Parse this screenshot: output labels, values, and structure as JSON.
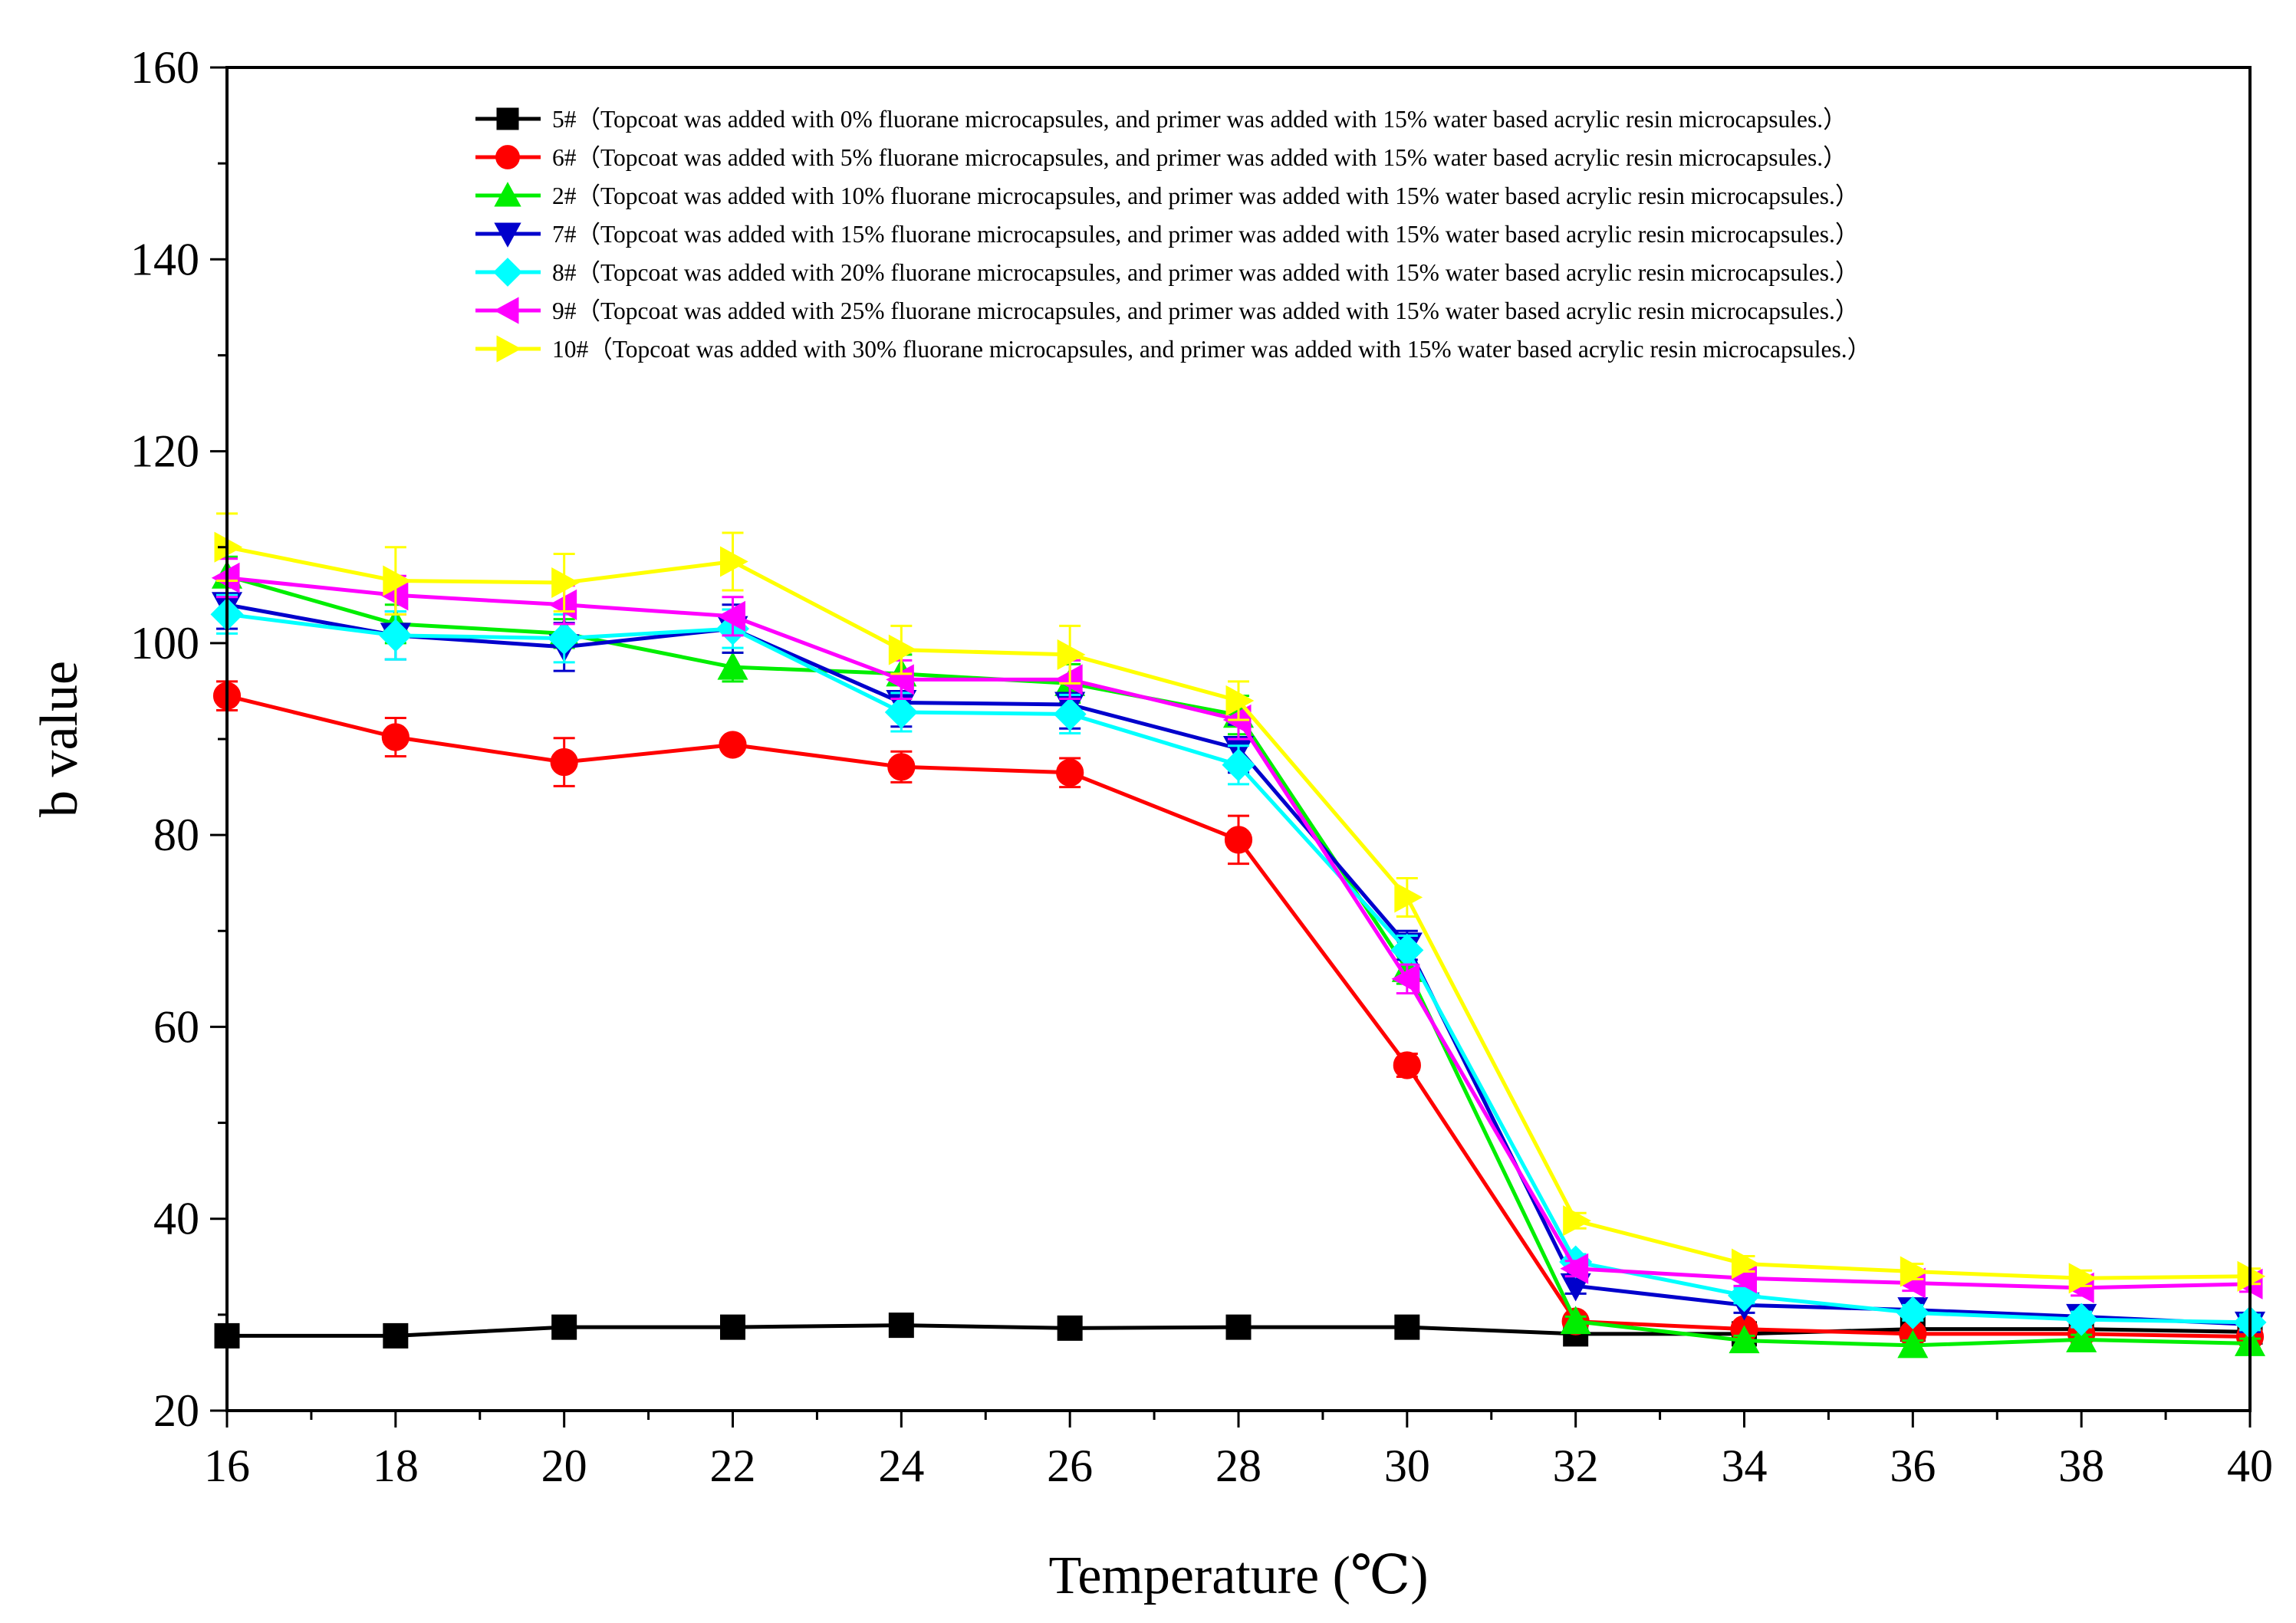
{
  "chart_data": {
    "type": "line",
    "title": "",
    "xlabel": "Temperature (℃)",
    "ylabel": "b value",
    "xlim": [
      16,
      40
    ],
    "ylim": [
      20,
      160
    ],
    "x_ticks": [
      16,
      18,
      20,
      22,
      24,
      26,
      28,
      30,
      32,
      34,
      36,
      38,
      40
    ],
    "y_ticks": [
      20,
      40,
      60,
      80,
      100,
      120,
      140,
      160
    ],
    "legend_position": "top-right",
    "x": [
      16,
      18,
      20,
      22,
      24,
      26,
      28,
      30,
      32,
      34,
      36,
      38,
      40
    ],
    "series": [
      {
        "name": "5#（Topcoat was added with 0% fluorane microcapsules, and primer was added with 15% water based acrylic resin microcapsules.）",
        "color": "#000000",
        "marker": "square",
        "values": [
          27.8,
          27.8,
          28.7,
          28.7,
          28.9,
          28.6,
          28.7,
          28.7,
          28.0,
          28.0,
          28.5,
          28.5,
          28.2
        ],
        "errors": [
          0,
          0,
          0,
          0,
          0,
          0,
          0,
          0,
          0,
          0,
          0,
          0,
          0
        ]
      },
      {
        "name": "6#（Topcoat was added with 5% fluorane microcapsules, and primer was added with 15% water based acrylic resin microcapsules.）",
        "color": "#ff0000",
        "marker": "circle",
        "values": [
          94.5,
          90.2,
          87.6,
          89.4,
          87.1,
          86.5,
          79.5,
          56.0,
          29.3,
          28.5,
          28.0,
          28.0,
          27.7
        ],
        "errors": [
          1.5,
          2.0,
          2.5,
          0.8,
          1.6,
          1.5,
          2.5,
          1.2,
          0.5,
          0.5,
          0.5,
          0.5,
          0.5
        ]
      },
      {
        "name": "2#（Topcoat was added with 10% fluorane microcapsules, and primer was added with 15% water based acrylic resin microcapsules.）",
        "color": "#00ee00",
        "marker": "triangle-up",
        "values": [
          107.0,
          102.0,
          101.0,
          97.5,
          96.8,
          95.8,
          92.5,
          66.0,
          29.3,
          27.3,
          26.8,
          27.4,
          27.0
        ],
        "errors": [
          2.0,
          2.0,
          1.5,
          1.5,
          2.0,
          2.0,
          2.0,
          1.5,
          0.5,
          0.5,
          0.5,
          0.5,
          0.5
        ]
      },
      {
        "name": "7#（Topcoat was added with 15% fluorane microcapsules, and primer was added with 15% water based acrylic resin microcapsules.）",
        "color": "#0000cc",
        "marker": "triangle-down",
        "values": [
          104.0,
          100.8,
          99.6,
          101.5,
          93.8,
          93.6,
          89.0,
          68.5,
          33.0,
          31.0,
          30.5,
          29.8,
          29.0
        ],
        "errors": [
          2.5,
          2.5,
          2.5,
          2.5,
          2.5,
          2.5,
          2.5,
          1.5,
          0.8,
          0.8,
          0.8,
          0.8,
          0.8
        ]
      },
      {
        "name": "8#（Topcoat was added with 20% fluorane microcapsules, and primer was added with 15% water based acrylic resin microcapsules.）",
        "color": "#00ffff",
        "marker": "diamond",
        "values": [
          103.0,
          100.8,
          100.5,
          101.5,
          92.8,
          92.6,
          87.3,
          68.0,
          35.5,
          32.0,
          30.2,
          29.5,
          29.2
        ],
        "errors": [
          2.0,
          2.5,
          2.5,
          2.0,
          2.0,
          2.0,
          2.0,
          1.5,
          0.8,
          0.8,
          0.8,
          0.8,
          0.8
        ]
      },
      {
        "name": "9#（Topcoat was added with 25% fluorane microcapsules, and primer was added with 15% water based acrylic resin microcapsules.）",
        "color": "#ff00ff",
        "marker": "triangle-left",
        "values": [
          106.8,
          105.0,
          104.0,
          102.8,
          96.2,
          96.2,
          92.0,
          65.0,
          34.8,
          33.8,
          33.3,
          32.8,
          33.2
        ],
        "errors": [
          2.0,
          2.0,
          2.0,
          2.0,
          2.0,
          2.0,
          2.0,
          1.5,
          0.8,
          0.8,
          0.8,
          0.8,
          0.8
        ]
      },
      {
        "name": "10#（Topcoat was added with 30% fluorane microcapsules, and primer was added with 15% water based acrylic resin microcapsules.）",
        "color": "#ffff00",
        "marker": "triangle-right",
        "values": [
          110.0,
          106.5,
          106.3,
          108.5,
          99.3,
          98.8,
          94.0,
          73.5,
          39.8,
          35.3,
          34.5,
          33.8,
          34.0
        ],
        "errors": [
          3.5,
          3.5,
          3.0,
          3.0,
          2.5,
          3.0,
          2.0,
          2.0,
          0.8,
          0.8,
          0.8,
          0.8,
          0.8
        ]
      }
    ]
  }
}
